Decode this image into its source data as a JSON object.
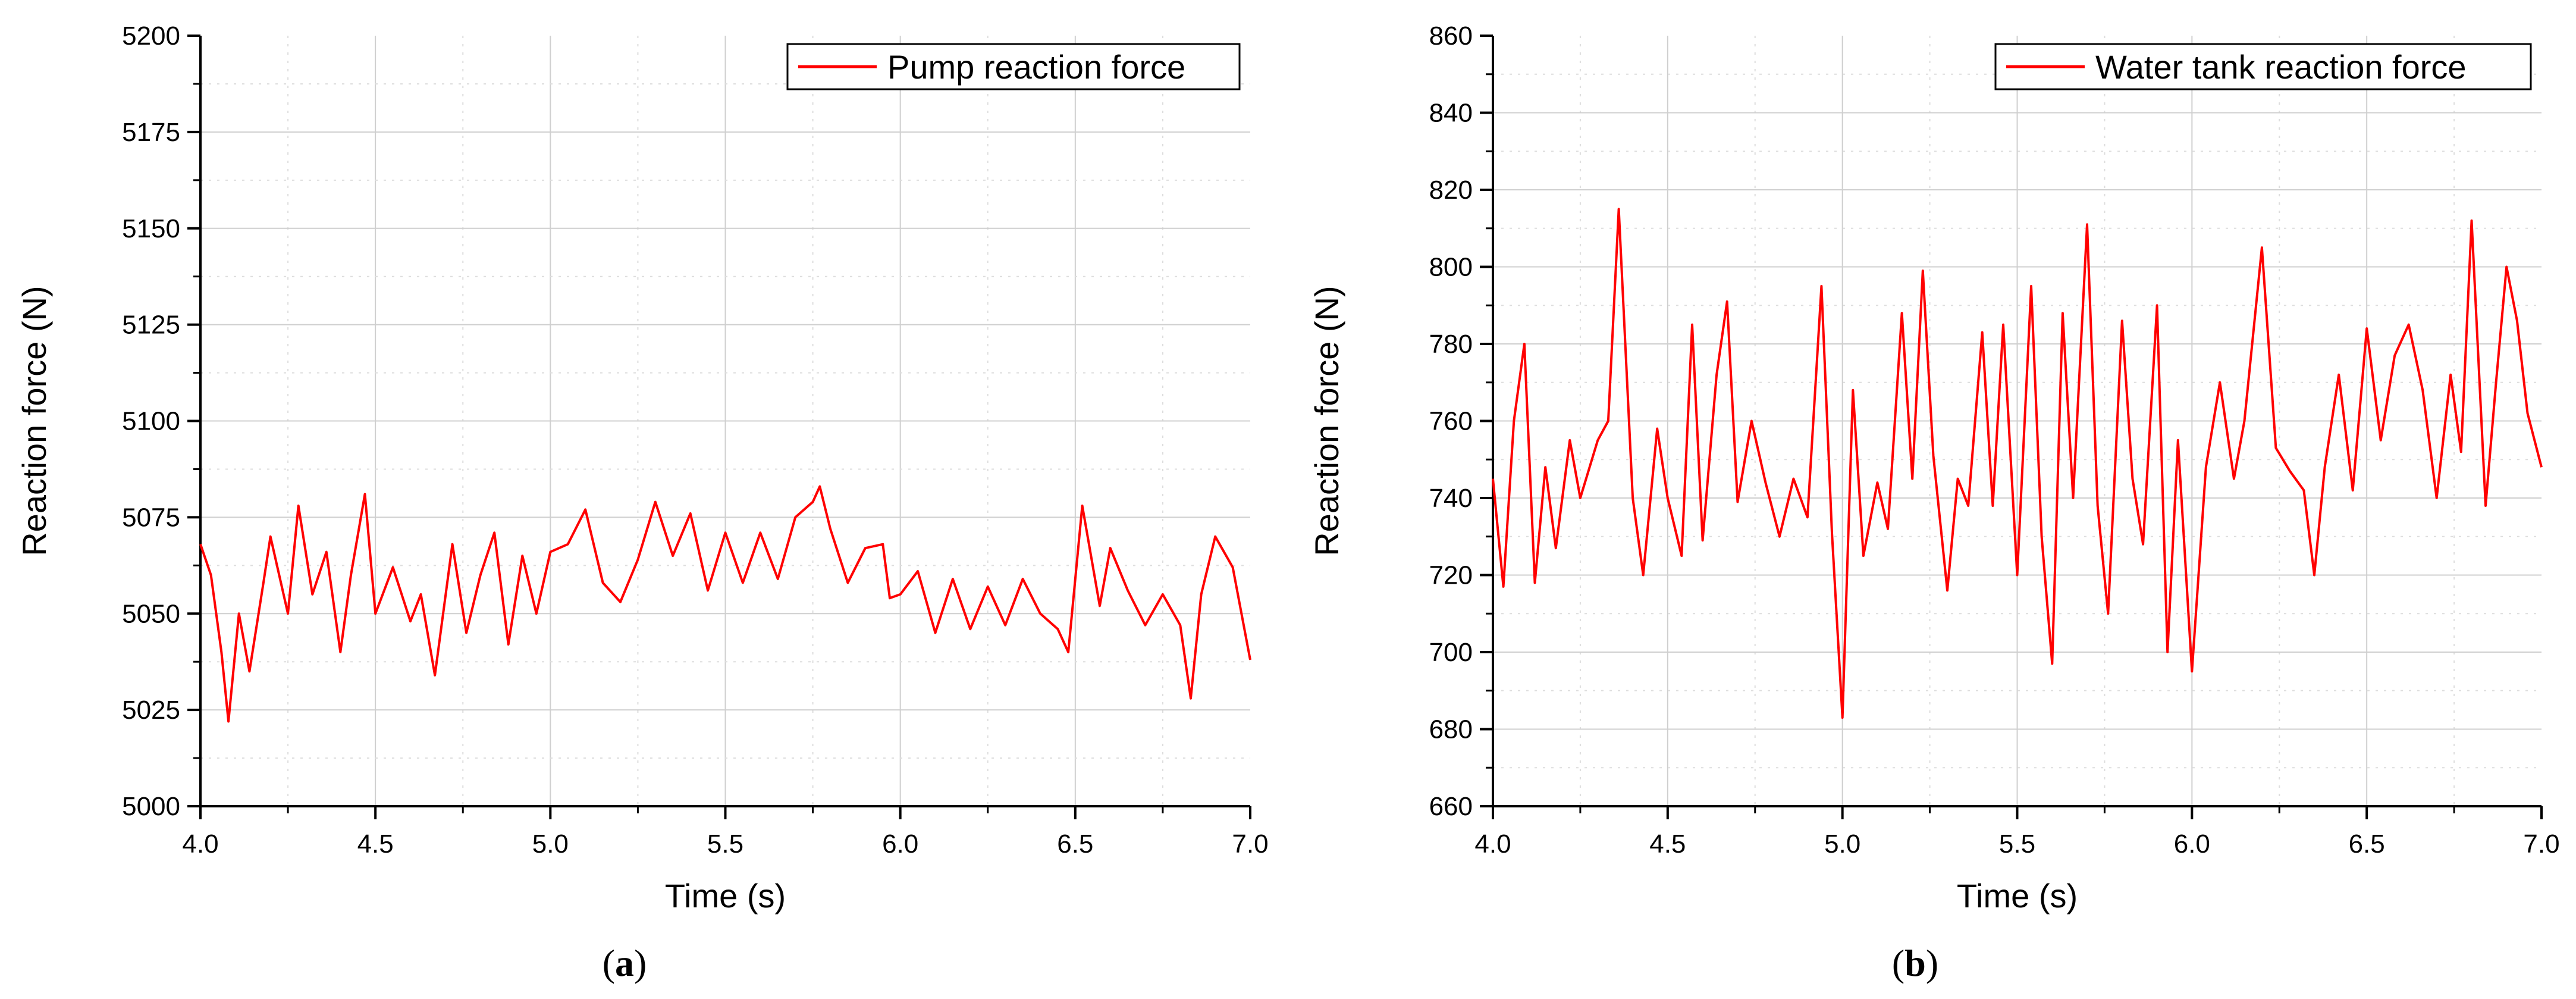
{
  "chart_data": [
    {
      "type": "line",
      "caption": "a",
      "xlabel": "Time (s)",
      "ylabel": "Reaction force (N)",
      "xlim": [
        4.0,
        7.0
      ],
      "ylim": [
        5000,
        5200
      ],
      "xticks": [
        "4.0",
        "4.5",
        "5.0",
        "5.5",
        "6.0",
        "6.5",
        "7.0"
      ],
      "yticks": [
        "5000",
        "5025",
        "5050",
        "5075",
        "5100",
        "5125",
        "5150",
        "5175",
        "5200"
      ],
      "grid": true,
      "legend_position": "top-right",
      "line_color": "#ff0000",
      "series": [
        {
          "name": "Pump reaction force",
          "x": [
            4.0,
            4.03,
            4.06,
            4.08,
            4.11,
            4.14,
            4.18,
            4.2,
            4.25,
            4.28,
            4.32,
            4.36,
            4.4,
            4.43,
            4.47,
            4.5,
            4.55,
            4.6,
            4.63,
            4.67,
            4.72,
            4.76,
            4.8,
            4.84,
            4.88,
            4.92,
            4.96,
            5.0,
            5.05,
            5.1,
            5.15,
            5.2,
            5.25,
            5.3,
            5.35,
            5.4,
            5.45,
            5.5,
            5.55,
            5.6,
            5.65,
            5.7,
            5.75,
            5.77,
            5.8,
            5.85,
            5.9,
            5.95,
            5.97,
            6.0,
            6.05,
            6.1,
            6.15,
            6.2,
            6.25,
            6.3,
            6.35,
            6.4,
            6.45,
            6.48,
            6.52,
            6.57,
            6.6,
            6.65,
            6.7,
            6.75,
            6.8,
            6.83,
            6.86,
            6.9,
            6.95,
            7.0
          ],
          "y": [
            5068,
            5060,
            5040,
            5022,
            5050,
            5035,
            5058,
            5070,
            5050,
            5078,
            5055,
            5066,
            5040,
            5060,
            5081,
            5050,
            5062,
            5048,
            5055,
            5034,
            5068,
            5045,
            5060,
            5071,
            5042,
            5065,
            5050,
            5066,
            5068,
            5077,
            5058,
            5053,
            5064,
            5079,
            5065,
            5076,
            5056,
            5071,
            5058,
            5071,
            5059,
            5075,
            5079,
            5083,
            5072,
            5058,
            5067,
            5068,
            5054,
            5055,
            5061,
            5045,
            5059,
            5046,
            5057,
            5047,
            5059,
            5050,
            5046,
            5040,
            5078,
            5052,
            5067,
            5056,
            5047,
            5055,
            5047,
            5028,
            5055,
            5070,
            5062,
            5038
          ]
        }
      ]
    },
    {
      "type": "line",
      "caption": "b",
      "xlabel": "Time (s)",
      "ylabel": "Reaction force (N)",
      "xlim": [
        4.0,
        7.0
      ],
      "ylim": [
        660,
        860
      ],
      "xticks": [
        "4.0",
        "4.5",
        "5.0",
        "5.5",
        "6.0",
        "6.5",
        "7.0"
      ],
      "yticks": [
        "660",
        "680",
        "700",
        "720",
        "740",
        "760",
        "780",
        "800",
        "820",
        "840",
        "860"
      ],
      "grid": true,
      "legend_position": "top-right",
      "line_color": "#ff0000",
      "series": [
        {
          "name": "Water tank reaction force",
          "x": [
            4.0,
            4.03,
            4.06,
            4.09,
            4.12,
            4.15,
            4.18,
            4.22,
            4.25,
            4.3,
            4.33,
            4.36,
            4.4,
            4.43,
            4.47,
            4.5,
            4.54,
            4.57,
            4.6,
            4.64,
            4.67,
            4.7,
            4.74,
            4.78,
            4.82,
            4.86,
            4.9,
            4.94,
            4.97,
            5.0,
            5.03,
            5.06,
            5.1,
            5.13,
            5.17,
            5.2,
            5.23,
            5.26,
            5.3,
            5.33,
            5.36,
            5.4,
            5.43,
            5.46,
            5.5,
            5.54,
            5.57,
            5.6,
            5.63,
            5.66,
            5.7,
            5.73,
            5.76,
            5.8,
            5.83,
            5.86,
            5.9,
            5.93,
            5.96,
            6.0,
            6.04,
            6.08,
            6.12,
            6.15,
            6.2,
            6.24,
            6.28,
            6.32,
            6.35,
            6.38,
            6.42,
            6.46,
            6.5,
            6.54,
            6.58,
            6.62,
            6.66,
            6.7,
            6.74,
            6.77,
            6.8,
            6.84,
            6.87,
            6.9,
            6.93,
            6.96,
            7.0
          ],
          "y": [
            745,
            717,
            760,
            780,
            718,
            748,
            727,
            755,
            740,
            755,
            760,
            815,
            740,
            720,
            758,
            740,
            725,
            785,
            729,
            772,
            791,
            739,
            760,
            744,
            730,
            745,
            735,
            795,
            731,
            683,
            768,
            725,
            744,
            732,
            788,
            745,
            799,
            751,
            716,
            745,
            738,
            783,
            738,
            785,
            720,
            795,
            730,
            697,
            788,
            740,
            811,
            738,
            710,
            786,
            745,
            728,
            790,
            700,
            755,
            695,
            748,
            770,
            745,
            760,
            805,
            753,
            747,
            742,
            720,
            748,
            772,
            742,
            784,
            755,
            777,
            785,
            768,
            740,
            772,
            752,
            812,
            738,
            770,
            800,
            786,
            762,
            748
          ]
        }
      ]
    }
  ]
}
